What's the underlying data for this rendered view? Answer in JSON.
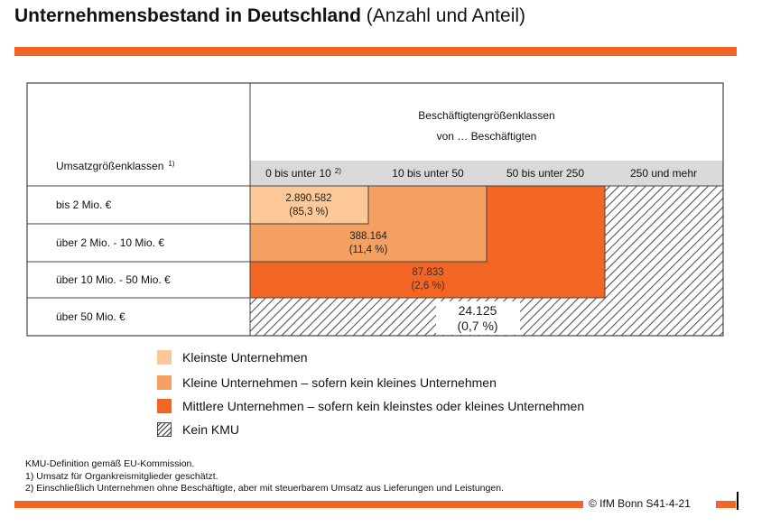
{
  "title": {
    "bold": "Unternehmensbestand in Deutschland",
    "normal": "(Anzahl und Anteil)"
  },
  "colors": {
    "accent": "#f26522",
    "kleinst": "#fcc898",
    "klein": "#f4a060",
    "mittel": "#f26522",
    "header_gray": "#d9d9d9",
    "hatch": "#555555"
  },
  "chart_data": {
    "type": "table",
    "header": {
      "row_label": "Umsatzgrößenklassen",
      "row_label_note": "1)",
      "col_group_line1": "Beschäftigtengrößenklassen",
      "col_group_line2": "von … Beschäftigten"
    },
    "columns": [
      {
        "label": "0 bis unter 10",
        "note": "2)"
      },
      {
        "label": "10 bis unter 50",
        "note": ""
      },
      {
        "label": "50 bis unter 250",
        "note": ""
      },
      {
        "label": "250 und mehr",
        "note": ""
      }
    ],
    "rows": [
      "bis 2 Mio. €",
      "über 2 Mio. - 10 Mio. €",
      "über 10 Mio. - 50 Mio. €",
      "über 50 Mio. €"
    ],
    "categories": [
      {
        "key": "kleinst",
        "value": "2.890.582",
        "share": "(85,3 %)"
      },
      {
        "key": "klein",
        "value": "388.164",
        "share": "(11,4 %)"
      },
      {
        "key": "mittel",
        "value": "87.833",
        "share": "(2,6 %)"
      },
      {
        "key": "kein_kmu",
        "value": "24.125",
        "share": "(0,7 %)"
      }
    ]
  },
  "legend": [
    {
      "key": "kleinst",
      "label": "Kleinste Unternehmen"
    },
    {
      "key": "klein",
      "label": "Kleine Unternehmen – sofern kein kleines Unternehmen"
    },
    {
      "key": "mittel",
      "label": "Mittlere Unternehmen – sofern kein kleinstes oder kleines Unternehmen"
    },
    {
      "key": "kein_kmu",
      "label": "Kein KMU"
    }
  ],
  "notes": [
    "KMU-Definition gemäß EU-Kommission.",
    "1) Umsatz für Organkreismitglieder geschätzt.",
    "2) Einschließlich Unternehmen ohne Beschäftigte, aber mit steuerbarem Umsatz aus Lieferungen und Leistungen."
  ],
  "copyright": "© IfM Bonn S41-4-21"
}
